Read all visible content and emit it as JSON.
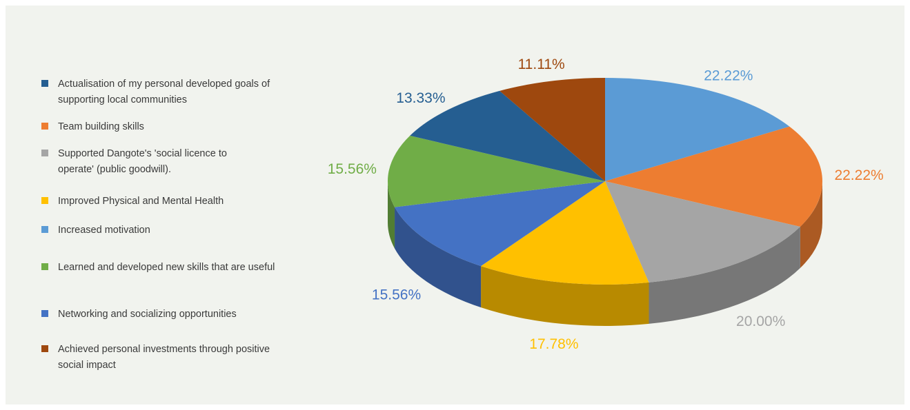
{
  "chart_data": {
    "type": "pie",
    "title": "",
    "style": "3d",
    "legend_position": "left",
    "slices": [
      {
        "label": "Increased motivation",
        "value": 22.22,
        "color": "#5b9bd5",
        "text": "22.22%"
      },
      {
        "label": "Team building skills",
        "value": 22.22,
        "color": "#ed7d31",
        "text": "22.22%"
      },
      {
        "label": "Supported Dangote's 'social licence to operate' (public goodwill).",
        "value": 20.0,
        "color": "#a5a5a5",
        "text": "20.00%"
      },
      {
        "label": "Improved Physical and Mental Health",
        "value": 17.78,
        "color": "#ffc000",
        "text": "17.78%"
      },
      {
        "label": "Networking and socializing opportunities",
        "value": 15.56,
        "color": "#4472c4",
        "text": "15.56%"
      },
      {
        "label": "Learned and developed new skills that are useful",
        "value": 15.56,
        "color": "#70ad47",
        "text": "15.56%"
      },
      {
        "label": "Actualisation of my personal developed goals of supporting local communities",
        "value": 13.33,
        "color": "#255e91",
        "text": "13.33%"
      },
      {
        "label": "Achieved personal investments through positive social impact",
        "value": 11.11,
        "color": "#9e480e",
        "text": "11.11%"
      }
    ]
  },
  "legend": {
    "items": [
      {
        "label": "Actualisation of my personal developed goals of supporting local communities",
        "color": "#255e91"
      },
      {
        "label": "Team building skills",
        "color": "#ed7d31"
      },
      {
        "label": "Supported Dangote's 'social licence to operate' (public goodwill).",
        "color": "#a5a5a5"
      },
      {
        "label": "Improved Physical and Mental Health",
        "color": "#ffc000"
      },
      {
        "label": "Increased motivation",
        "color": "#5b9bd5"
      },
      {
        "label": "Learned and developed new skills that are useful",
        "color": "#70ad47"
      },
      {
        "label": "Networking and socializing opportunities",
        "color": "#4472c4"
      },
      {
        "label": "Achieved personal investments through positive social impact",
        "color": "#9e480e"
      }
    ]
  }
}
